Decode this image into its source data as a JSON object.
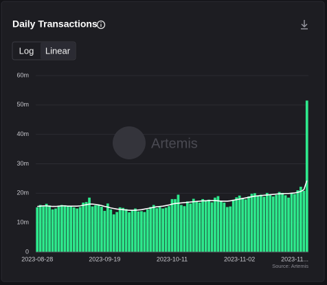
{
  "chart_data": {
    "type": "bar",
    "title": "Daily Transactions",
    "scale_options": [
      "Log",
      "Linear"
    ],
    "log_scale": false,
    "watermark": "Artemis",
    "source": "Source: Artemis",
    "grid": true,
    "categories": [
      "2023-08-28",
      null,
      null,
      null,
      null,
      null,
      null,
      null,
      null,
      null,
      null,
      null,
      null,
      null,
      null,
      null,
      null,
      null,
      null,
      null,
      null,
      null,
      "2023-09-19",
      null,
      null,
      null,
      null,
      null,
      null,
      null,
      null,
      null,
      null,
      null,
      null,
      null,
      null,
      null,
      null,
      null,
      null,
      null,
      null,
      null,
      "2023-10-11",
      null,
      null,
      null,
      null,
      null,
      null,
      null,
      null,
      null,
      null,
      null,
      null,
      null,
      null,
      null,
      null,
      null,
      null,
      null,
      null,
      null,
      "2023-11-02",
      null,
      null,
      null,
      null,
      null,
      null,
      null,
      null,
      null,
      null,
      null,
      null,
      null,
      null,
      null,
      null,
      null,
      null,
      null,
      null,
      null,
      "2023-11..."
    ],
    "series": [
      {
        "type": "bar",
        "color": "#2ee88c",
        "values": [
          15.2,
          16.0,
          15.5,
          16.4,
          15.8,
          14.5,
          14.8,
          15.6,
          16.0,
          15.9,
          15.4,
          15.7,
          15.2,
          14.8,
          15.3,
          16.8,
          17.0,
          18.5,
          15.5,
          15.9,
          16.2,
          15.4,
          14.0,
          16.5,
          14.5,
          12.8,
          13.6,
          15.2,
          15.0,
          14.6,
          13.5,
          14.2,
          14.8,
          13.8,
          13.9,
          13.6,
          14.5,
          15.3,
          16.0,
          14.9,
          15.3,
          14.8,
          15.1,
          15.6,
          18.0,
          18.0,
          19.5,
          16.0,
          15.6,
          17.2,
          16.5,
          18.1,
          17.2,
          16.8,
          18.0,
          17.6,
          17.8,
          16.9,
          18.5,
          19.0,
          17.5,
          16.8,
          15.3,
          15.5,
          17.8,
          18.6,
          19.2,
          18.4,
          17.9,
          18.9,
          19.8,
          20.0,
          19.2,
          19.5,
          18.8,
          20.1,
          19.6,
          18.9,
          19.4,
          20.4,
          20.1,
          19.3,
          18.5,
          20.0,
          19.7,
          21.0,
          22.2,
          20.8,
          51.5
        ]
      },
      {
        "type": "line",
        "color": "#ffffff",
        "values": [
          15.5,
          15.6,
          15.7,
          15.7,
          15.6,
          15.5,
          15.5,
          15.6,
          15.7,
          15.7,
          15.6,
          15.6,
          15.6,
          15.6,
          15.7,
          15.9,
          16.1,
          16.3,
          16.3,
          16.2,
          16.0,
          15.8,
          15.5,
          15.3,
          15.0,
          14.8,
          14.6,
          14.5,
          14.4,
          14.3,
          14.2,
          14.2,
          14.2,
          14.3,
          14.4,
          14.6,
          14.8,
          15.0,
          15.2,
          15.4,
          15.5,
          15.6,
          15.8,
          16.0,
          16.3,
          16.5,
          16.6,
          16.7,
          16.8,
          16.9,
          17.0,
          17.1,
          17.2,
          17.3,
          17.4,
          17.4,
          17.5,
          17.5,
          17.5,
          17.4,
          17.3,
          17.3,
          17.3,
          17.4,
          17.6,
          17.8,
          18.0,
          18.2,
          18.4,
          18.6,
          18.8,
          19.0,
          19.1,
          19.2,
          19.3,
          19.4,
          19.5,
          19.6,
          19.7,
          19.8,
          19.8,
          19.9,
          19.9,
          20.0,
          20.1,
          20.3,
          20.6,
          21.2,
          24.3
        ]
      }
    ],
    "ylim": [
      0,
      60
    ],
    "yticks": [
      0,
      {
        "value": 10,
        "label": "10m"
      },
      {
        "value": 20,
        "label": "20m"
      },
      {
        "value": 30,
        "label": "30m"
      },
      {
        "value": 40,
        "label": "40m"
      },
      {
        "value": 50,
        "label": "50m"
      },
      {
        "value": 60,
        "label": "60m"
      }
    ]
  }
}
